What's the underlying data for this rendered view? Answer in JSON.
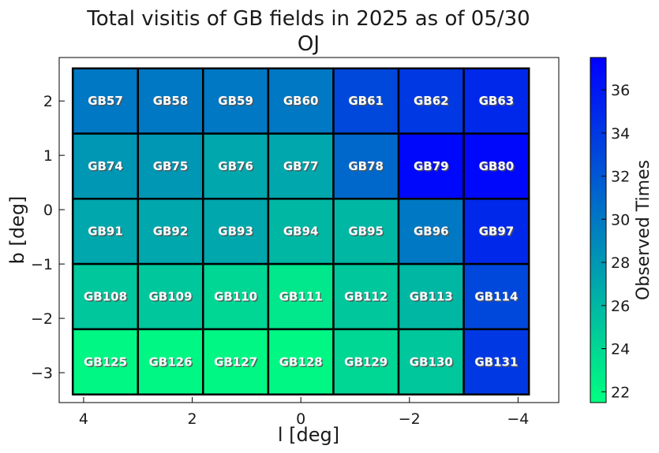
{
  "chart_data": {
    "type": "heatmap",
    "title": "Total visitis of GB fields in 2025 as of 05/30",
    "subtitle": "OJ",
    "xlabel": "l [deg]",
    "ylabel": "b [deg]",
    "xlim": [
      4.45,
      -4.75
    ],
    "ylim": [
      -3.55,
      2.8
    ],
    "x_ticks": [
      4,
      2,
      0,
      -2,
      -4
    ],
    "x_tick_labels": [
      "4",
      "2",
      "0",
      "−2",
      "−4"
    ],
    "y_ticks": [
      2,
      1,
      0,
      -1,
      -2,
      -3
    ],
    "y_tick_labels": [
      "2",
      "1",
      "0",
      "−1",
      "−2",
      "−3"
    ],
    "grid": false,
    "colorbar": {
      "label": "Observed Times",
      "min": 21.5,
      "max": 37.5,
      "ticks": [
        22,
        24,
        26,
        28,
        30,
        32,
        34,
        36
      ],
      "colors": [
        "#00ff80",
        "#0000ff"
      ]
    },
    "columns_l": [
      3.6,
      2.4,
      1.2,
      0.0,
      -1.2,
      -2.4,
      -3.6
    ],
    "rows_b": [
      2.0,
      0.8,
      -0.4,
      -1.6,
      -2.8
    ],
    "cell_width": 1.2,
    "cell_height": 1.2,
    "cells": [
      {
        "name": "GB57",
        "l": 3.6,
        "b": 2.0,
        "value": 30
      },
      {
        "name": "GB58",
        "l": 2.4,
        "b": 2.0,
        "value": 30
      },
      {
        "name": "GB59",
        "l": 1.2,
        "b": 2.0,
        "value": 30
      },
      {
        "name": "GB60",
        "l": 0.0,
        "b": 2.0,
        "value": 30
      },
      {
        "name": "GB61",
        "l": -1.2,
        "b": 2.0,
        "value": 33
      },
      {
        "name": "GB62",
        "l": -2.4,
        "b": 2.0,
        "value": 34
      },
      {
        "name": "GB63",
        "l": -3.6,
        "b": 2.0,
        "value": 35
      },
      {
        "name": "GB74",
        "l": 3.6,
        "b": 0.8,
        "value": 28
      },
      {
        "name": "GB75",
        "l": 2.4,
        "b": 0.8,
        "value": 28
      },
      {
        "name": "GB76",
        "l": 1.2,
        "b": 0.8,
        "value": 27
      },
      {
        "name": "GB77",
        "l": 0.0,
        "b": 0.8,
        "value": 27
      },
      {
        "name": "GB78",
        "l": -1.2,
        "b": 0.8,
        "value": 31
      },
      {
        "name": "GB79",
        "l": -2.4,
        "b": 0.8,
        "value": 37
      },
      {
        "name": "GB80",
        "l": -3.6,
        "b": 0.8,
        "value": 37
      },
      {
        "name": "GB91",
        "l": 3.6,
        "b": -0.4,
        "value": 27
      },
      {
        "name": "GB92",
        "l": 2.4,
        "b": -0.4,
        "value": 27
      },
      {
        "name": "GB93",
        "l": 1.2,
        "b": -0.4,
        "value": 27
      },
      {
        "name": "GB94",
        "l": 0.0,
        "b": -0.4,
        "value": 26
      },
      {
        "name": "GB95",
        "l": -1.2,
        "b": -0.4,
        "value": 26
      },
      {
        "name": "GB96",
        "l": -2.4,
        "b": -0.4,
        "value": 30
      },
      {
        "name": "GB97",
        "l": -3.6,
        "b": -0.4,
        "value": 35
      },
      {
        "name": "GB108",
        "l": 3.6,
        "b": -1.6,
        "value": 25
      },
      {
        "name": "GB109",
        "l": 2.4,
        "b": -1.6,
        "value": 25
      },
      {
        "name": "GB110",
        "l": 1.2,
        "b": -1.6,
        "value": 24
      },
      {
        "name": "GB111",
        "l": 0.0,
        "b": -1.6,
        "value": 23
      },
      {
        "name": "GB112",
        "l": -1.2,
        "b": -1.6,
        "value": 25
      },
      {
        "name": "GB113",
        "l": -2.4,
        "b": -1.6,
        "value": 26
      },
      {
        "name": "GB114",
        "l": -3.6,
        "b": -1.6,
        "value": 33
      },
      {
        "name": "GB125",
        "l": 3.6,
        "b": -2.8,
        "value": 22
      },
      {
        "name": "GB126",
        "l": 2.4,
        "b": -2.8,
        "value": 22
      },
      {
        "name": "GB127",
        "l": 1.2,
        "b": -2.8,
        "value": 22
      },
      {
        "name": "GB128",
        "l": 0.0,
        "b": -2.8,
        "value": 22
      },
      {
        "name": "GB129",
        "l": -1.2,
        "b": -2.8,
        "value": 24
      },
      {
        "name": "GB130",
        "l": -2.4,
        "b": -2.8,
        "value": 25
      },
      {
        "name": "GB131",
        "l": -3.6,
        "b": -2.8,
        "value": 34
      }
    ]
  }
}
